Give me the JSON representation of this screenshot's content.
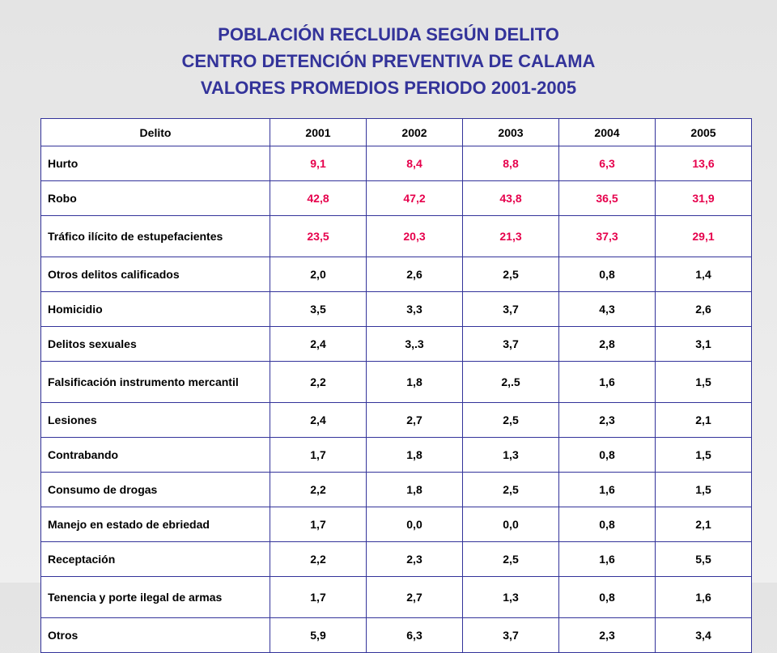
{
  "title": {
    "line1": "POBLACIÓN RECLUIDA SEGÚN DELITO",
    "line2": "CENTRO DETENCIÓN PREVENTIVA DE CALAMA",
    "line3": "VALORES PROMEDIOS PERIODO 2001-2005"
  },
  "table": {
    "headers": [
      "Delito",
      "2001",
      "2002",
      "2003",
      "2004",
      "2005"
    ],
    "rows": [
      {
        "label": "Hurto",
        "values": [
          "9,1",
          "8,4",
          "8,8",
          "6,3",
          "13,6"
        ],
        "highlight": true
      },
      {
        "label": "Robo",
        "values": [
          "42,8",
          "47,2",
          "43,8",
          "36,5",
          "31,9"
        ],
        "highlight": true
      },
      {
        "label": "Tráfico ilícito de estupefacientes",
        "values": [
          "23,5",
          "20,3",
          "21,3",
          "37,3",
          "29,1"
        ],
        "highlight": true
      },
      {
        "label": "Otros delitos calificados",
        "values": [
          "2,0",
          "2,6",
          "2,5",
          "0,8",
          "1,4"
        ]
      },
      {
        "label": "Homicidio",
        "values": [
          "3,5",
          "3,3",
          "3,7",
          "4,3",
          "2,6"
        ]
      },
      {
        "label": "Delitos sexuales",
        "values": [
          "2,4",
          "3,.3",
          "3,7",
          "2,8",
          "3,1"
        ]
      },
      {
        "label": "Falsificación instrumento mercantil",
        "values": [
          "2,2",
          "1,8",
          "2,.5",
          "1,6",
          "1,5"
        ]
      },
      {
        "label": "Lesiones",
        "values": [
          "2,4",
          "2,7",
          "2,5",
          "2,3",
          "2,1"
        ]
      },
      {
        "label": "Contrabando",
        "values": [
          "1,7",
          "1,8",
          "1,3",
          "0,8",
          "1,5"
        ]
      },
      {
        "label": "Consumo de drogas",
        "values": [
          "2,2",
          "1,8",
          "2,5",
          "1,6",
          "1,5"
        ]
      },
      {
        "label": "Manejo en estado de ebriedad",
        "values": [
          "1,7",
          "0,0",
          "0,0",
          "0,8",
          "2,1"
        ]
      },
      {
        "label": "Receptación",
        "values": [
          "2,2",
          "2,3",
          "2,5",
          "1,6",
          "5,5"
        ]
      },
      {
        "label": "Tenencia y porte ilegal de armas",
        "values": [
          "1,7",
          "2,7",
          "1,3",
          "0,8",
          "1,6"
        ]
      },
      {
        "label": "Otros",
        "values": [
          "5,9",
          "6,3",
          "3,7",
          "2,3",
          "3,4"
        ]
      }
    ]
  },
  "colors": {
    "title": "#33339a",
    "border": "#33339a",
    "highlight": "#e6004c"
  }
}
